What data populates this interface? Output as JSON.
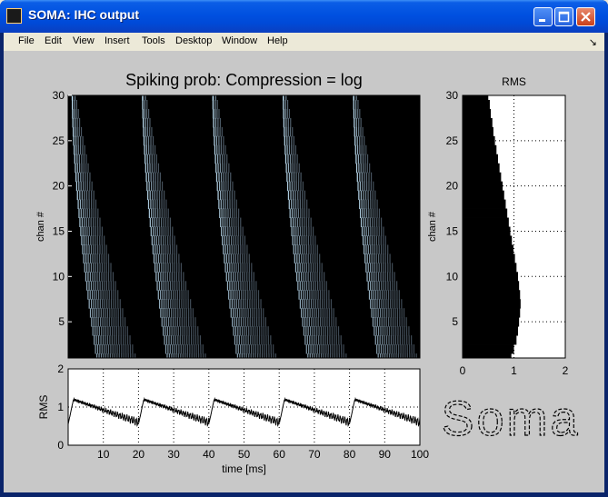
{
  "window": {
    "title": "SOMA: IHC output"
  },
  "menu": [
    "File",
    "Edit",
    "View",
    "Insert",
    "Tools",
    "Desktop",
    "Window",
    "Help"
  ],
  "colors": {
    "figure_bg": "#c8c8c8",
    "titlebar": "#0050e0"
  },
  "chart_data": [
    {
      "type": "heatmap",
      "title": "Spiking prob: Compression = log",
      "ylabel": "chan #",
      "xlim": [
        0,
        100
      ],
      "ylim": [
        1,
        30
      ],
      "yticks": [
        5,
        10,
        15,
        20,
        25,
        30
      ],
      "ytick_labels": [
        "5",
        "10",
        "15",
        "20",
        "25",
        "30"
      ],
      "colormap": "bone",
      "burst_onsets_ms": [
        0,
        20,
        40,
        60,
        80
      ]
    },
    {
      "type": "line",
      "ylabel": "RMS",
      "xlabel": "time [ms]",
      "xlim": [
        0,
        100
      ],
      "ylim": [
        0,
        2
      ],
      "xticks": [
        10,
        20,
        30,
        40,
        50,
        60,
        70,
        80,
        90,
        100
      ],
      "xtick_labels": [
        "10",
        "20",
        "30",
        "40",
        "50",
        "60",
        "70",
        "80",
        "90",
        "100"
      ],
      "yticks": [
        0,
        1,
        2
      ],
      "ytick_labels": [
        "0",
        "1",
        "2"
      ],
      "grid": true,
      "period_ms": 20,
      "peak": 1.2,
      "trough": 0.55
    },
    {
      "type": "bar",
      "orientation": "horizontal",
      "title": "RMS",
      "ylabel": "chan #",
      "xlim": [
        0,
        2
      ],
      "ylim": [
        1,
        30
      ],
      "xticks": [
        0,
        1,
        2
      ],
      "xtick_labels": [
        "0",
        "1",
        "2"
      ],
      "yticks": [
        5,
        10,
        15,
        20,
        25,
        30
      ],
      "ytick_labels": [
        "5",
        "10",
        "15",
        "20",
        "25",
        "30"
      ],
      "grid": true,
      "channels": [
        1,
        2,
        3,
        4,
        5,
        6,
        7,
        8,
        9,
        10,
        11,
        12,
        13,
        14,
        15,
        16,
        17,
        18,
        19,
        20,
        21,
        22,
        23,
        24,
        25,
        26,
        27,
        28,
        29,
        30
      ],
      "values": [
        0.95,
        1.0,
        1.05,
        1.08,
        1.1,
        1.12,
        1.13,
        1.12,
        1.1,
        1.08,
        1.05,
        1.02,
        0.99,
        0.96,
        0.93,
        0.9,
        0.87,
        0.84,
        0.81,
        0.78,
        0.75,
        0.72,
        0.69,
        0.66,
        0.63,
        0.6,
        0.58,
        0.55,
        0.53,
        0.5
      ]
    }
  ],
  "logo": "Soma"
}
